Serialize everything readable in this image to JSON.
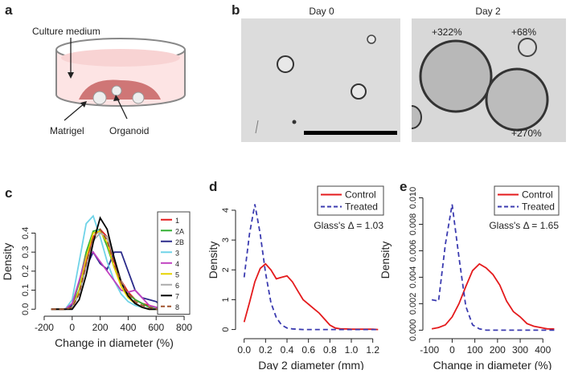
{
  "panels": {
    "a": {
      "label": "a",
      "culture_medium": "Culture medium",
      "matrigel": "Matrigel",
      "organoid": "Organoid"
    },
    "b": {
      "label": "b",
      "day0": "Day 0",
      "day2": "Day 2",
      "changes": [
        "+322%",
        "+68%",
        "+270%"
      ]
    }
  },
  "chart_data": [
    {
      "type": "line",
      "panel_label": "c",
      "xlabel": "Change in diameter (%)",
      "ylabel": "Density",
      "xlim": [
        -240,
        840
      ],
      "ylim": [
        -0.02,
        0.52
      ],
      "xticks": [
        -200,
        0,
        200,
        400,
        600,
        800
      ],
      "yticks": [
        {
          "value": 0,
          "label": "0.0"
        },
        0.1,
        0.2,
        0.3,
        0.4
      ],
      "legend": "topright",
      "x": [
        -150,
        -100,
        -50,
        0,
        50,
        100,
        150,
        200,
        250,
        300,
        350,
        400,
        450,
        500,
        550,
        600,
        650,
        700,
        750
      ],
      "series": [
        {
          "name": "1",
          "color": "#e41a1c",
          "values": [
            0,
            0,
            0,
            0.01,
            0.1,
            0.25,
            0.38,
            0.42,
            0.38,
            0.25,
            0.15,
            0.09,
            0.05,
            0.03,
            0.02,
            0.01,
            0,
            0,
            0
          ]
        },
        {
          "name": "2A",
          "color": "#33b033",
          "values": [
            0,
            0,
            0,
            0.02,
            0.14,
            0.3,
            0.41,
            0.42,
            0.33,
            0.22,
            0.14,
            0.08,
            0.05,
            0.03,
            0.01,
            0.01,
            0,
            0,
            0
          ]
        },
        {
          "name": "2B",
          "color": "#2b2b8a",
          "values": [
            0,
            0,
            0,
            0.02,
            0.1,
            0.22,
            0.3,
            0.24,
            0.21,
            0.3,
            0.3,
            0.2,
            0.1,
            0.06,
            0.05,
            0.04,
            0.01,
            0,
            0
          ]
        },
        {
          "name": "3",
          "color": "#6fd3e8",
          "values": [
            0,
            0,
            0,
            0.05,
            0.25,
            0.45,
            0.49,
            0.38,
            0.25,
            0.15,
            0.08,
            0.04,
            0.02,
            0.01,
            0,
            0,
            0,
            0,
            0
          ]
        },
        {
          "name": "4",
          "color": "#c040c0",
          "values": [
            0,
            0,
            0,
            0.03,
            0.15,
            0.28,
            0.3,
            0.25,
            0.2,
            0.15,
            0.1,
            0.09,
            0.1,
            0.06,
            0.02,
            0.01,
            0,
            0,
            0
          ]
        },
        {
          "name": "5",
          "color": "#e6d200",
          "values": [
            0,
            0,
            0,
            0.01,
            0.1,
            0.27,
            0.4,
            0.41,
            0.35,
            0.22,
            0.12,
            0.06,
            0.03,
            0.01,
            0,
            0,
            0,
            0,
            0
          ]
        },
        {
          "name": "6",
          "color": "#aaaaaa",
          "values": [
            0,
            0,
            0,
            0.01,
            0.08,
            0.22,
            0.36,
            0.4,
            0.38,
            0.27,
            0.15,
            0.07,
            0.03,
            0.01,
            0,
            0,
            0,
            0,
            0
          ]
        },
        {
          "name": "7",
          "color": "#000000",
          "values": [
            0,
            0,
            0,
            0,
            0.05,
            0.18,
            0.35,
            0.48,
            0.42,
            0.27,
            0.14,
            0.07,
            0.03,
            0.01,
            0,
            0,
            0,
            0,
            0
          ]
        },
        {
          "name": "8",
          "color": "#a0522d",
          "line_style": "dashed",
          "values": [
            0,
            0,
            0,
            0.01,
            0.08,
            0.24,
            0.38,
            0.42,
            0.36,
            0.24,
            0.14,
            0.08,
            0.04,
            0.02,
            0.01,
            0,
            0,
            0,
            0
          ]
        }
      ]
    },
    {
      "type": "line",
      "panel_label": "d",
      "xlabel": "Day 2 diameter (mm)",
      "ylabel": "Density",
      "annotation": "Glass's Δ = 1.03",
      "xlim": [
        -0.05,
        1.3
      ],
      "ylim": [
        -0.2,
        4.86
      ],
      "xticks": [
        {
          "value": 0,
          "label": "0.0"
        },
        0.2,
        0.4,
        0.6,
        0.8,
        {
          "value": 1,
          "label": "1.0"
        },
        1.2
      ],
      "yticks": [
        0,
        1,
        2,
        3,
        4
      ],
      "legend": "topright",
      "x": [
        0,
        0.05,
        0.1,
        0.15,
        0.2,
        0.25,
        0.3,
        0.35,
        0.4,
        0.45,
        0.5,
        0.55,
        0.6,
        0.65,
        0.7,
        0.75,
        0.8,
        0.85,
        0.9,
        0.95,
        1,
        1.05,
        1.1,
        1.15,
        1.2,
        1.25
      ],
      "series": [
        {
          "name": "Control",
          "color": "#e41a1c",
          "values": [
            0.25,
            0.9,
            1.6,
            2.05,
            2.2,
            2.0,
            1.7,
            1.75,
            1.8,
            1.6,
            1.3,
            1.0,
            0.85,
            0.7,
            0.55,
            0.35,
            0.15,
            0.05,
            0.02,
            0.02,
            0.01,
            0.01,
            0.01,
            0.01,
            0.01,
            0
          ]
        },
        {
          "name": "Treated",
          "color": "#3b3bb0",
          "line_style": "dashed",
          "values": [
            1.75,
            3.2,
            4.2,
            3.2,
            1.9,
            0.9,
            0.4,
            0.15,
            0.05,
            0.02,
            0.01,
            0,
            0,
            0,
            0,
            0,
            0,
            0,
            0,
            0,
            0,
            0,
            0,
            0,
            0,
            0
          ]
        }
      ]
    },
    {
      "type": "line",
      "panel_label": "e",
      "xlabel": "Change in diameter (%)",
      "ylabel": "Density",
      "annotation": "Glass's Δ = 1.65",
      "xlim": [
        -115,
        470
      ],
      "ylim": [
        -0.0004,
        0.011
      ],
      "xticks": [
        -100,
        0,
        100,
        200,
        300,
        400
      ],
      "yticks": [
        {
          "value": 0,
          "label": "0.000"
        },
        0.002,
        0.004,
        0.006,
        0.008,
        {
          "value": 0.01,
          "label": "0.010"
        }
      ],
      "legend": "topright",
      "x": [
        -90,
        -60,
        -30,
        0,
        30,
        60,
        90,
        120,
        150,
        180,
        210,
        240,
        270,
        300,
        330,
        360,
        390,
        420,
        450
      ],
      "series": [
        {
          "name": "Control",
          "color": "#e41a1c",
          "values": [
            0.0001,
            0.0002,
            0.0004,
            0.001,
            0.002,
            0.0033,
            0.0045,
            0.005,
            0.0047,
            0.0042,
            0.0034,
            0.0022,
            0.0014,
            0.001,
            0.0005,
            0.0003,
            0.0002,
            0.0001,
            0.0001
          ]
        },
        {
          "name": "Treated",
          "color": "#3b3bb0",
          "line_style": "dashed",
          "values": [
            0.0023,
            0.0022,
            0.0065,
            0.0095,
            0.0055,
            0.0018,
            0.0004,
            0.0001,
            0,
            0,
            0,
            0,
            0,
            0,
            0,
            0,
            0,
            0,
            0
          ]
        }
      ]
    }
  ]
}
